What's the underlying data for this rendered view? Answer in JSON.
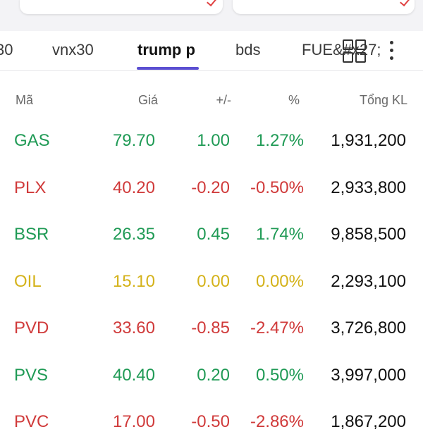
{
  "tabs": [
    {
      "label": "30",
      "active": false
    },
    {
      "label": "vnx30",
      "active": false
    },
    {
      "label": "trump p",
      "active": true
    },
    {
      "label": "bds",
      "active": false
    },
    {
      "label": "FUE&#x27;",
      "active": false
    }
  ],
  "icons": {
    "grid": "grid-view-icon",
    "more": "more-vertical-icon"
  },
  "columns": {
    "code": "Mã",
    "price": "Giá",
    "change": "+/-",
    "percent": "%",
    "volume": "Tổng KL"
  },
  "colors": {
    "up": "#1f9a55",
    "down": "#d03a3a",
    "reference": "#d4b21a",
    "accent": "#5b4fd1"
  },
  "rows": [
    {
      "code": "GAS",
      "price": "79.70",
      "change": "1.00",
      "percent": "1.27%",
      "volume": "1,931,200",
      "status": "up"
    },
    {
      "code": "PLX",
      "price": "40.20",
      "change": "-0.20",
      "percent": "-0.50%",
      "volume": "2,933,800",
      "status": "down"
    },
    {
      "code": "BSR",
      "price": "26.35",
      "change": "0.45",
      "percent": "1.74%",
      "volume": "9,858,500",
      "status": "up"
    },
    {
      "code": "OIL",
      "price": "15.10",
      "change": "0.00",
      "percent": "0.00%",
      "volume": "2,293,100",
      "status": "ref"
    },
    {
      "code": "PVD",
      "price": "33.60",
      "change": "-0.85",
      "percent": "-2.47%",
      "volume": "3,726,800",
      "status": "down"
    },
    {
      "code": "PVS",
      "price": "40.40",
      "change": "0.20",
      "percent": "0.50%",
      "volume": "3,997,000",
      "status": "up"
    },
    {
      "code": "PVC",
      "price": "17.00",
      "change": "-0.50",
      "percent": "-2.86%",
      "volume": "1,867,200",
      "status": "down"
    }
  ]
}
